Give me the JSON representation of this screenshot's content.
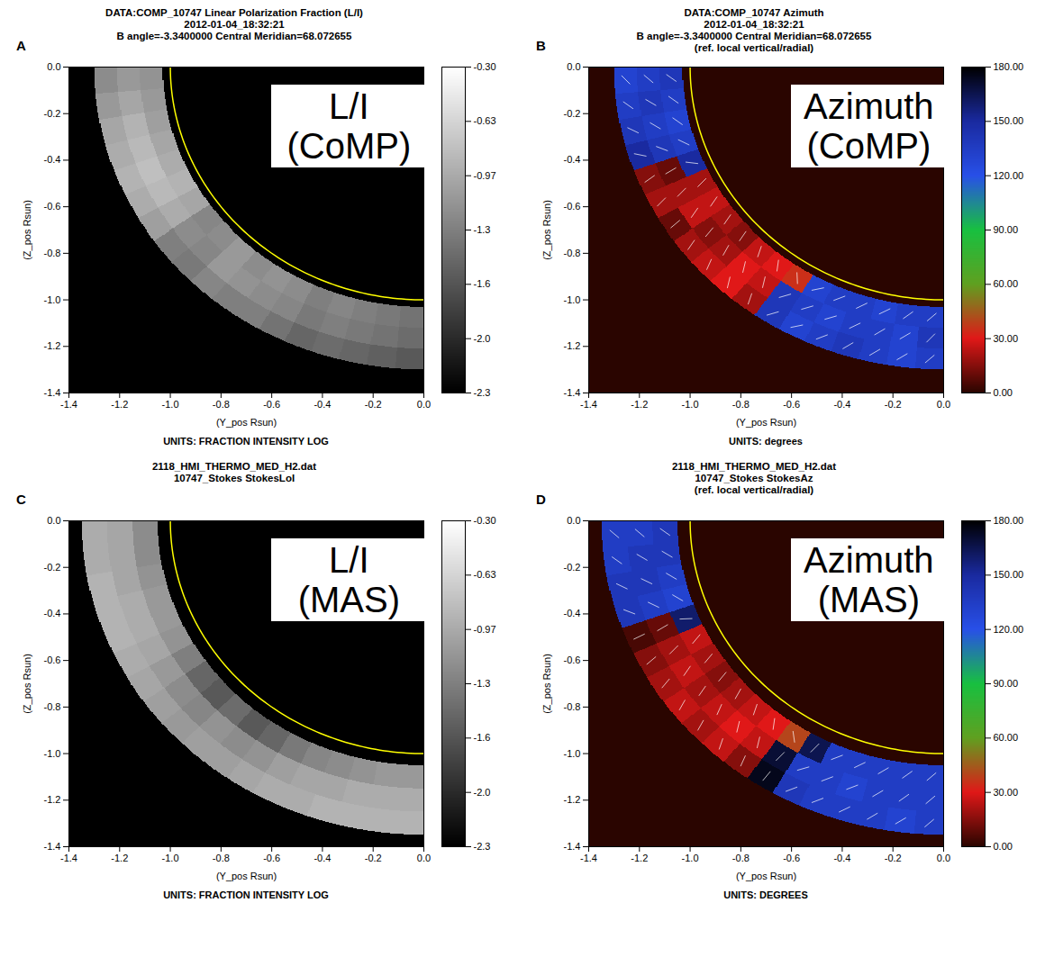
{
  "chart_data": [
    {
      "panel": "A",
      "type": "heatmap",
      "title": [
        "DATA:COMP_10747 Linear Polarization Fraction (L/I)",
        "2012-01-04_18:32:21",
        "B angle=-3.3400000 Central Meridian=68.072655"
      ],
      "annotation": [
        "L/I",
        "(CoMP)"
      ],
      "xlabel": "(Y_pos Rsun)",
      "ylabel": "(Z_pos Rsun)",
      "xlim": [
        -1.4,
        0
      ],
      "ylim": [
        -1.4,
        0
      ],
      "xticks": [
        -1.4,
        -1.2,
        {
          "value": -1,
          "label": "-1.0"
        },
        -0.8,
        -0.6,
        -0.4,
        -0.2,
        {
          "value": 0,
          "label": "0.0"
        }
      ],
      "yticks": [
        -1.4,
        -1.2,
        {
          "value": -1,
          "label": "-1.0"
        },
        -0.8,
        -0.6,
        -0.4,
        -0.2,
        {
          "value": 0,
          "label": "0.0"
        }
      ],
      "units": "UNITS: FRACTION INTENSITY LOG",
      "colorbar": {
        "range": [
          -2.3,
          -0.3
        ],
        "ticks": [
          -2.3,
          {
            "value": -1.9667,
            "label": "-2.0"
          },
          {
            "value": -1.6333,
            "label": "-1.6"
          },
          -1.3,
          {
            "value": -0.9667,
            "label": "-0.97"
          },
          {
            "value": -0.6333,
            "label": "-0.63"
          },
          {
            "value": -0.3,
            "label": "-0.30"
          }
        ],
        "colors": [
          "#000000",
          "#ffffff"
        ]
      },
      "cells": {
        "angle_edges": [
          0,
          5,
          10,
          15,
          20,
          25,
          30,
          35,
          40,
          45,
          50,
          55,
          60,
          65,
          70,
          75,
          80,
          85,
          90
        ],
        "radius_edges": [
          1.03,
          1.12,
          1.21,
          1.3
        ],
        "values": [
          [
            -1.15,
            -1.1,
            -1.05,
            -1.0,
            -0.95,
            -0.9,
            -1.0,
            -1.25,
            -1.2,
            -1.1,
            -1.2,
            -1.15,
            -1.2,
            -1.3,
            -1.25,
            -1.3,
            -1.35,
            -1.4
          ],
          [
            -1.1,
            -1.0,
            -0.9,
            -0.85,
            -0.8,
            -0.85,
            -0.95,
            -1.2,
            -1.25,
            -1.1,
            -1.15,
            -1.2,
            -1.25,
            -1.35,
            -1.3,
            -1.35,
            -1.4,
            -1.45
          ],
          [
            -1.2,
            -1.1,
            -1.0,
            -0.95,
            -0.9,
            -0.95,
            -1.05,
            -1.3,
            -1.35,
            -1.25,
            -1.3,
            -1.3,
            -1.4,
            -1.5,
            -1.45,
            -1.5,
            -1.55,
            -1.6
          ]
        ]
      },
      "limb": {
        "radius": 1,
        "color": "#ffff00"
      }
    },
    {
      "panel": "B",
      "type": "heatmap",
      "marker": "vector",
      "title": [
        "DATA:COMP_10747 Azimuth",
        "2012-01-04_18:32:21",
        "B angle=-3.3400000 Central Meridian=68.072655",
        "(ref. local vertical/radial)"
      ],
      "annotation": [
        "Azimuth",
        "(CoMP)"
      ],
      "xlabel": "(Y_pos Rsun)",
      "ylabel": "(Z_pos Rsun)",
      "xlim": [
        -1.4,
        0
      ],
      "ylim": [
        -1.4,
        0
      ],
      "xticks": [
        -1.4,
        -1.2,
        {
          "value": -1,
          "label": "-1.0"
        },
        -0.8,
        -0.6,
        -0.4,
        -0.2,
        {
          "value": 0,
          "label": "0.0"
        }
      ],
      "yticks": [
        -1.4,
        -1.2,
        {
          "value": -1,
          "label": "-1.0"
        },
        -0.8,
        -0.6,
        -0.4,
        -0.2,
        {
          "value": 0,
          "label": "0.0"
        }
      ],
      "units": "UNITS: degrees",
      "colorbar": {
        "range": [
          0,
          180
        ],
        "ticks": [
          {
            "value": 0,
            "label": "0.00"
          },
          {
            "value": 30,
            "label": "30.00"
          },
          {
            "value": 60,
            "label": "60.00"
          },
          {
            "value": 90,
            "label": "90.00"
          },
          {
            "value": 120,
            "label": "120.00"
          },
          {
            "value": 150,
            "label": "150.00"
          },
          {
            "value": 180,
            "label": "180.00"
          }
        ],
        "colors": [
          "#2a0500",
          "#e01818",
          "#60a020",
          "#18c040",
          "#2850e8",
          "#1a2aa0",
          "#000000"
        ]
      },
      "cells": {
        "angle_edges": [
          0,
          5,
          10,
          15,
          20,
          25,
          30,
          35,
          40,
          45,
          50,
          55,
          60,
          65,
          70,
          75,
          80,
          85,
          90
        ],
        "radius_edges": [
          1.03,
          1.12,
          1.21,
          1.3
        ],
        "values": [
          [
            140,
            135,
            130,
            135,
            150,
            20,
            25,
            20,
            15,
            25,
            30,
            35,
            130,
            135,
            135,
            130,
            135,
            135
          ],
          [
            135,
            140,
            135,
            140,
            10,
            20,
            25,
            15,
            20,
            30,
            25,
            140,
            135,
            130,
            135,
            135,
            130,
            140
          ],
          [
            130,
            135,
            140,
            150,
            15,
            20,
            10,
            20,
            25,
            30,
            20,
            140,
            130,
            135,
            140,
            135,
            130,
            135
          ]
        ]
      },
      "limb": {
        "radius": 1,
        "color": "#ffff00"
      }
    },
    {
      "panel": "C",
      "type": "heatmap",
      "title": [
        "2118_HMI_THERMO_MED_H2.dat",
        "10747_Stokes StokesLoI"
      ],
      "annotation": [
        "L/I",
        "(MAS)"
      ],
      "xlabel": "(Y_pos Rsun)",
      "ylabel": "(Z_pos Rsun)",
      "xlim": [
        -1.4,
        0
      ],
      "ylim": [
        -1.4,
        0
      ],
      "xticks": [
        -1.4,
        -1.2,
        {
          "value": -1,
          "label": "-1.0"
        },
        -0.8,
        -0.6,
        -0.4,
        -0.2,
        {
          "value": 0,
          "label": "0.0"
        }
      ],
      "yticks": [
        -1.4,
        -1.2,
        {
          "value": -1,
          "label": "-1.0"
        },
        -0.8,
        -0.6,
        -0.4,
        -0.2,
        {
          "value": 0,
          "label": "0.0"
        }
      ],
      "units": "UNITS: FRACTION INTENSITY LOG",
      "colorbar": {
        "range": [
          -2.3,
          -0.3
        ],
        "ticks": [
          -2.3,
          {
            "value": -1.9667,
            "label": "-2.0"
          },
          {
            "value": -1.6333,
            "label": "-1.6"
          },
          -1.3,
          {
            "value": -0.9667,
            "label": "-0.97"
          },
          {
            "value": -0.6333,
            "label": "-0.63"
          },
          {
            "value": -0.3,
            "label": "-0.30"
          }
        ],
        "colors": [
          "#000000",
          "#ffffff"
        ]
      },
      "cells": {
        "angle_edges": [
          0,
          5,
          10,
          15,
          20,
          25,
          30,
          35,
          40,
          45,
          50,
          55,
          60,
          65,
          70,
          75,
          80,
          85,
          90
        ],
        "radius_edges": [
          1.05,
          1.15,
          1.25,
          1.35
        ],
        "values": [
          [
            -1.2,
            -1.2,
            -1.15,
            -1.1,
            -1.1,
            -1.15,
            -1.3,
            -1.5,
            -1.6,
            -1.45,
            -1.6,
            -1.5,
            -1.35,
            -1.25,
            -1.2,
            -1.15,
            -1.1,
            -1.1
          ],
          [
            -1.0,
            -1.0,
            -1.0,
            -0.95,
            -0.95,
            -1.0,
            -1.1,
            -1.2,
            -1.25,
            -1.15,
            -1.2,
            -1.15,
            -1.05,
            -1.0,
            -1.0,
            -0.95,
            -0.95,
            -0.95
          ],
          [
            -0.95,
            -0.95,
            -0.9,
            -0.9,
            -0.9,
            -0.95,
            -1.0,
            -1.05,
            -1.1,
            -1.05,
            -1.05,
            -1.0,
            -0.95,
            -0.95,
            -0.9,
            -0.9,
            -0.9,
            -0.9
          ]
        ]
      },
      "limb": {
        "radius": 1,
        "color": "#ffff00"
      }
    },
    {
      "panel": "D",
      "type": "heatmap",
      "marker": "vector",
      "title": [
        "2118_HMI_THERMO_MED_H2.dat",
        "10747_Stokes StokesAz",
        "(ref. local vertical/radial)"
      ],
      "annotation": [
        "Azimuth",
        "(MAS)"
      ],
      "xlabel": "(Y_pos Rsun)",
      "ylabel": "(Z_pos Rsun)",
      "xlim": [
        -1.4,
        0
      ],
      "ylim": [
        -1.4,
        0
      ],
      "xticks": [
        -1.4,
        -1.2,
        {
          "value": -1,
          "label": "-1.0"
        },
        -0.8,
        -0.6,
        -0.4,
        -0.2,
        {
          "value": 0,
          "label": "0.0"
        }
      ],
      "yticks": [
        -1.4,
        -1.2,
        {
          "value": -1,
          "label": "-1.0"
        },
        -0.8,
        -0.6,
        -0.4,
        -0.2,
        {
          "value": 0,
          "label": "0.0"
        }
      ],
      "units": "UNITS: DEGREES",
      "colorbar": {
        "range": [
          0,
          180
        ],
        "ticks": [
          {
            "value": 0,
            "label": "0.00"
          },
          {
            "value": 30,
            "label": "30.00"
          },
          {
            "value": 60,
            "label": "60.00"
          },
          {
            "value": 90,
            "label": "90.00"
          },
          {
            "value": 120,
            "label": "120.00"
          },
          {
            "value": 150,
            "label": "150.00"
          },
          {
            "value": 180,
            "label": "180.00"
          }
        ],
        "colors": [
          "#2a0500",
          "#e01818",
          "#60a020",
          "#18c040",
          "#2850e8",
          "#1a2aa0",
          "#000000"
        ]
      },
      "cells": {
        "angle_edges": [
          0,
          5,
          10,
          15,
          20,
          25,
          30,
          35,
          40,
          45,
          50,
          55,
          60,
          65,
          70,
          75,
          80,
          85,
          90
        ],
        "radius_edges": [
          1.05,
          1.15,
          1.25,
          1.35
        ],
        "values": [
          [
            140,
            140,
            135,
            130,
            160,
            25,
            20,
            15,
            20,
            25,
            30,
            40,
            165,
            135,
            135,
            135,
            135,
            135
          ],
          [
            135,
            140,
            140,
            135,
            10,
            20,
            25,
            20,
            25,
            30,
            25,
            170,
            135,
            135,
            130,
            135,
            135,
            135
          ],
          [
            135,
            135,
            140,
            140,
            5,
            15,
            20,
            25,
            20,
            25,
            15,
            175,
            140,
            135,
            135,
            135,
            130,
            135
          ]
        ]
      },
      "limb": {
        "radius": 1,
        "color": "#ffff00"
      }
    }
  ]
}
